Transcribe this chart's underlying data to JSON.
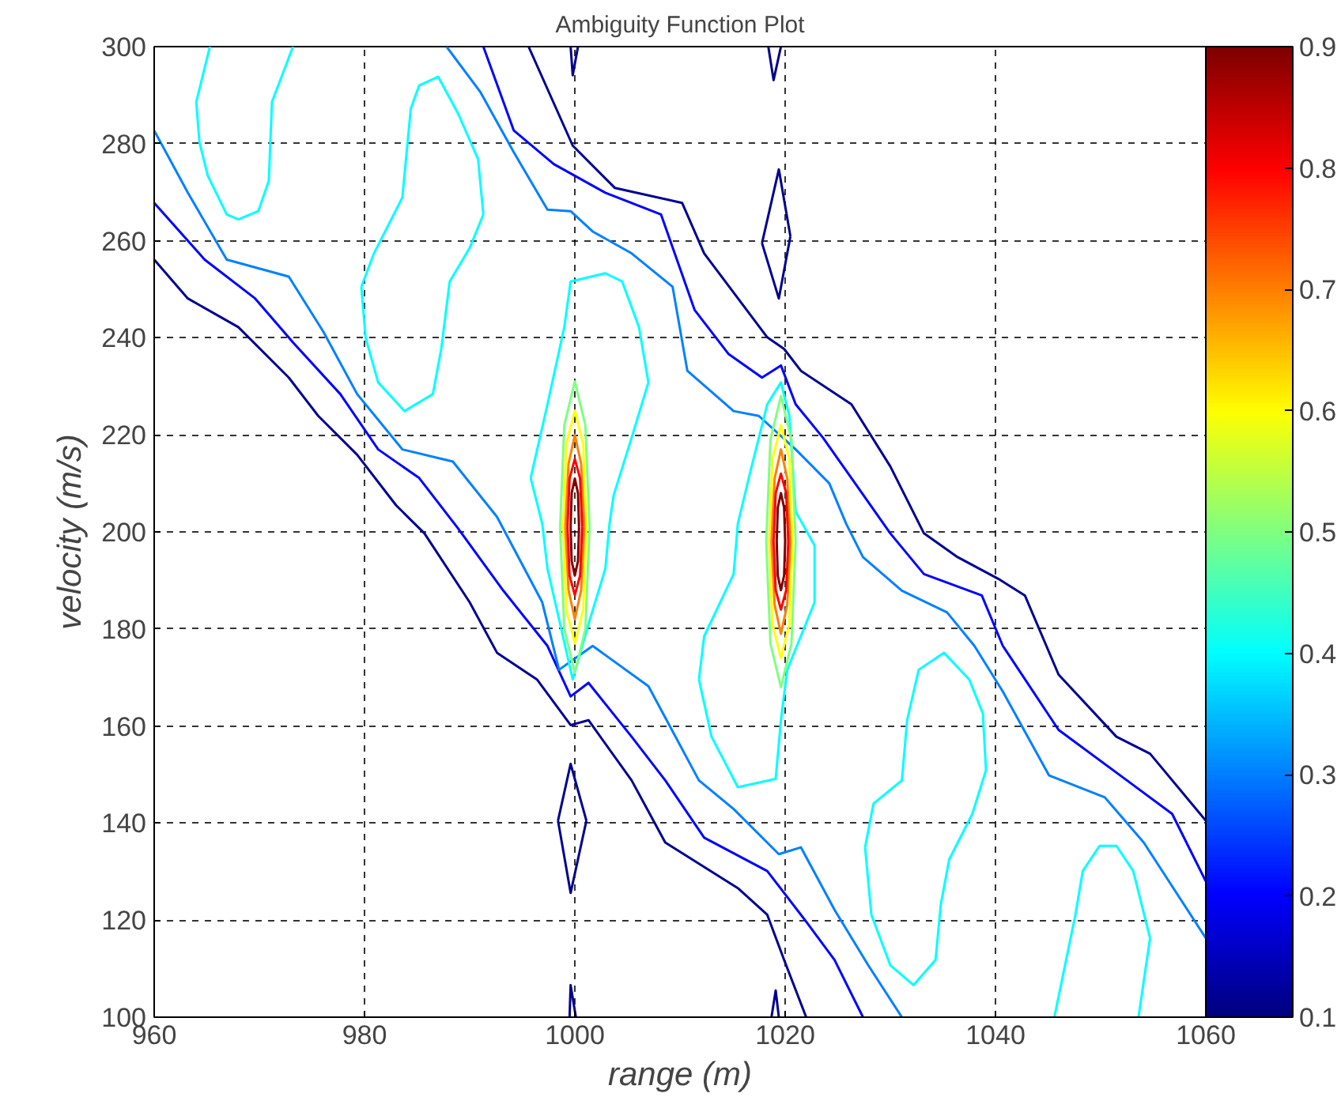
{
  "chart_data": {
    "type": "line",
    "title": "Ambiguity Function Plot",
    "xlabel": "range (m)",
    "ylabel": "velocity (m/s)",
    "xlim": [
      960,
      1060
    ],
    "ylim": [
      100,
      300
    ],
    "xticks": [
      960,
      980,
      1000,
      1020,
      1040,
      1060
    ],
    "yticks": [
      100,
      120,
      140,
      160,
      180,
      200,
      220,
      240,
      260,
      280,
      300
    ],
    "grid": true,
    "line_style": "solid",
    "marker": "none",
    "clim": [
      0.1,
      0.9
    ],
    "cticks": [
      0.1,
      0.2,
      0.3,
      0.4,
      0.5,
      0.6,
      0.7,
      0.8,
      0.9
    ],
    "series": [
      {
        "color": "#00008f",
        "x": [
          995.6,
          999.8,
          1003.8,
          1010.2,
          1012.3,
          1018.3,
          1019.9,
          1021.5,
          1026.3,
          1030.0,
          1033.2,
          1036.4,
          1040.3,
          1042.8,
          1046.0,
          1051.5,
          1054.7,
          1060
        ],
        "values": [
          300,
          279.6,
          270.9,
          267.8,
          257.4,
          240.1,
          237.7,
          233.2,
          226.3,
          213.5,
          199.7,
          194.8,
          190.3,
          186.9,
          170.6,
          157.8,
          154.3,
          140.5
        ]
      },
      {
        "color": "#0000ff",
        "x": [
          991.3,
          994.2,
          998.0,
          1002.9,
          1008.2,
          1011.4,
          1014.6,
          1017.8,
          1019.6,
          1021.0,
          1023.6,
          1026.3,
          1030.0,
          1033.2,
          1038.7,
          1040.7,
          1046.0,
          1052.5,
          1056.8,
          1060
        ],
        "values": [
          300,
          282.7,
          275.8,
          269.9,
          265.4,
          245.7,
          236.7,
          231.8,
          234.3,
          226.3,
          219.4,
          211.1,
          199.7,
          191.3,
          186.9,
          176.5,
          159.2,
          148.8,
          141.9,
          128.0
        ]
      },
      {
        "color": "#0080ff",
        "x": [
          987.8,
          991.0,
          994.2,
          997.4,
          999.6,
          1001.7,
          1005.4,
          1009.3,
          1010.7,
          1015.1,
          1017.5,
          1021.0,
          1024.2,
          1025.8,
          1027.4,
          1031.1,
          1035.4,
          1038.0,
          1040.7,
          1045.1,
          1050.4,
          1054.1,
          1060
        ],
        "values": [
          300,
          290.7,
          278.2,
          266.4,
          266.1,
          261.9,
          257.4,
          250.5,
          233.2,
          224.9,
          223.9,
          217.0,
          210.0,
          201.7,
          194.8,
          187.9,
          183.4,
          176.5,
          167.1,
          149.8,
          145.3,
          136.0,
          116.3
        ]
      },
      {
        "color": "#00008f",
        "x": [
          960,
          963.2,
          968.0,
          972.8,
          975.6,
          979.3,
          983.0,
          985.7,
          990.0,
          992.6,
          996.4,
          999.6,
          1001.3,
          1005.4,
          1008.6,
          1015.5,
          1018.3,
          1019.9,
          1022.0
        ],
        "values": [
          256.1,
          248.1,
          242.2,
          231.8,
          223.9,
          215.9,
          205.5,
          199.7,
          185.5,
          175.1,
          169.6,
          160.2,
          161.2,
          148.8,
          136.0,
          126.6,
          121.1,
          111.8,
          100
        ]
      },
      {
        "color": "#0000ff",
        "x": [
          960,
          964.8,
          969.6,
          973.3,
          977.7,
          981.3,
          985.2,
          988.9,
          993.2,
          997.4,
          999.6,
          1001.3,
          1005.4,
          1008.6,
          1012.3,
          1018.3,
          1022.0,
          1024.7,
          1027.4
        ],
        "values": [
          267.8,
          256.1,
          248.1,
          238.8,
          228.4,
          217.0,
          211.1,
          200.7,
          187.9,
          176.5,
          166.1,
          168.9,
          157.8,
          148.8,
          137.0,
          130.1,
          119.7,
          111.8,
          100
        ]
      },
      {
        "color": "#0080ff",
        "x": [
          960,
          963.2,
          966.9,
          972.8,
          976.1,
          979.3,
          983.6,
          988.4,
          992.6,
          996.9,
          998.5,
          1001.7,
          1007.0,
          1011.8,
          1015.1,
          1019.4,
          1021.5,
          1024.7,
          1027.9,
          1031.1
        ],
        "values": [
          282.7,
          269.9,
          256.1,
          252.6,
          241.2,
          228.4,
          217.0,
          214.5,
          203.1,
          185.5,
          171.6,
          176.5,
          168.2,
          148.8,
          142.9,
          133.6,
          135.0,
          122.1,
          110.7,
          100
        ]
      },
      {
        "color": "#00ffff",
        "x": [
          965.3,
          964.0,
          964.3,
          965.1,
          966.9,
          968.0,
          969.9,
          970.9,
          971.2,
          973.2
        ],
        "values": [
          300,
          288.6,
          280.3,
          273.4,
          265.4,
          264.4,
          266.1,
          272.3,
          288.6,
          300
        ]
      },
      {
        "color": "#00ffff",
        "x": [
          979.7,
          980.9,
          983.6,
          984.4,
          985.2,
          987.0,
          988.9,
          990.8,
          991.3,
          null,
          979.7,
          980.1,
          981.3,
          983.8,
          986.5,
          987.3,
          988.1,
          990.0,
          991.3
        ],
        "values": [
          250.5,
          257.4,
          268.9,
          287.2,
          292.0,
          293.8,
          286.2,
          276.8,
          265.4,
          null,
          250.5,
          240.1,
          230.8,
          224.9,
          228.4,
          237.7,
          251.6,
          258.5,
          265.4
        ]
      },
      {
        "color": "#00ffff",
        "x": [
          995.8,
          997.4,
          999.0,
          999.6,
          1002.9,
          1004.5,
          1006.1,
          1007.0,
          null,
          995.8,
          996.9,
          997.4,
          998.5,
          999.8,
          1001.3,
          1002.9,
          1003.3,
          1003.7,
          1005.4,
          1007.0
        ],
        "values": [
          211.1,
          226.3,
          242.2,
          251.6,
          253.3,
          251.6,
          242.2,
          230.8,
          null,
          211.1,
          201.7,
          192.4,
          182.0,
          169.6,
          181.0,
          192.4,
          201.7,
          207.6,
          219.4,
          230.8
        ]
      },
      {
        "color": "#00ffff",
        "x": [
          1011.8,
          1012.3,
          1015.1,
          1015.5,
          1016.7,
          1018.3,
          1019.6,
          1020.4,
          1021.0,
          1022.8,
          1022.8,
          null,
          1011.8,
          1013.0,
          1015.5,
          1019.1,
          1019.6,
          1020.2,
          1022.8
        ],
        "values": [
          169.6,
          178.5,
          191.3,
          201.7,
          212.5,
          226.3,
          230.8,
          223.9,
          204.2,
          197.2,
          185.5,
          null,
          169.6,
          157.8,
          147.4,
          149.1,
          161.2,
          171.6,
          185.5
        ]
      },
      {
        "color": "#00ffff",
        "x": [
          1027.6,
          1028.4,
          1031.1,
          1031.6,
          1032.7,
          1035.1,
          1037.5,
          1038.8,
          1039.1,
          null,
          1027.6,
          1028.2,
          1030.0,
          1032.2,
          1034.3,
          1034.8,
          1035.6,
          1037.8,
          1039.1
        ],
        "values": [
          135.0,
          144.0,
          148.8,
          161.2,
          171.6,
          175.1,
          169.6,
          162.6,
          150.9,
          null,
          135.0,
          121.1,
          110.7,
          106.6,
          111.8,
          123.2,
          132.5,
          141.9,
          150.9
        ]
      },
      {
        "color": "#00ffff",
        "x": [
          1045.6,
          1047.6,
          1048.3,
          1049.9,
          1051.5,
          1053.1,
          1054.7,
          null,
          1053.6,
          1054.7
        ],
        "values": [
          100,
          121.1,
          130.1,
          135.3,
          135.3,
          130.1,
          116.3,
          null,
          100,
          116.3
        ]
      },
      {
        "color": "#00008f",
        "x": [
          1018.4,
          1018.9,
          1019.6
        ],
        "values": [
          300,
          293.1,
          300
        ]
      },
      {
        "color": "#00008f",
        "x": [
          1017.8,
          1019.4,
          1020.5,
          null,
          1017.8,
          1019.4,
          1020.5
        ],
        "values": [
          259.5,
          274.7,
          260.9,
          null,
          259.5,
          248.1,
          260.9
        ]
      },
      {
        "color": "#00008f",
        "x": [
          998.4,
          999.6,
          1001.1,
          null,
          998.4,
          999.6,
          1001.1
        ],
        "values": [
          140.5,
          152.2,
          140.5,
          null,
          140.5,
          125.6,
          140.5
        ]
      },
      {
        "color": "#00008f",
        "x": [
          999.5,
          999.6,
          1000.1
        ],
        "values": [
          100,
          106.6,
          100
        ]
      },
      {
        "color": "#00008f",
        "x": [
          1018.7,
          1019.1,
          1019.4
        ],
        "values": [
          100,
          105.5,
          100
        ]
      },
      {
        "color": "#00008f",
        "x": [
          999.6,
          999.8,
          1000.3
        ],
        "values": [
          300,
          294.1,
          300
        ]
      },
      {
        "color": "#80ff80",
        "x": [
          998.6,
          999,
          1000,
          1001,
          1001.4,
          null,
          998.6,
          999,
          1000,
          1001,
          1001.4
        ],
        "values": [
          201,
          222,
          231,
          222,
          201,
          null,
          201,
          180,
          171,
          180,
          201
        ]
      },
      {
        "color": "#ffff00",
        "x": [
          998.9,
          999.2,
          1000,
          1000.8,
          1001.1,
          null,
          998.9,
          999.2,
          1000,
          1000.8,
          1001.1
        ],
        "values": [
          201,
          218,
          225,
          218,
          201,
          null,
          201,
          184,
          177,
          184,
          201
        ]
      },
      {
        "color": "#ff8000",
        "x": [
          999.1,
          999.4,
          1000,
          1000.6,
          1000.9,
          null,
          999.1,
          999.4,
          1000,
          1000.6,
          1000.9
        ],
        "values": [
          201,
          214,
          220,
          214,
          201,
          null,
          201,
          188,
          182,
          188,
          201
        ]
      },
      {
        "color": "#ff0000",
        "x": [
          999.3,
          999.5,
          1000,
          1000.5,
          1000.7,
          null,
          999.3,
          999.5,
          1000,
          1000.5,
          1000.7
        ],
        "values": [
          201,
          211,
          215,
          211,
          201,
          null,
          201,
          191,
          187,
          191,
          201
        ]
      },
      {
        "color": "#800000",
        "x": [
          999.6,
          999.7,
          1000,
          1000.3,
          1000.4,
          null,
          999.6,
          999.7,
          1000,
          1000.3,
          1000.4
        ],
        "values": [
          201,
          208,
          211,
          208,
          201,
          null,
          201,
          194,
          191,
          194,
          201
        ]
      },
      {
        "color": "#80ff80",
        "x": [
          1018.2,
          1018.6,
          1019.6,
          1020.6,
          1021.0,
          null,
          1018.2,
          1018.6,
          1019.6,
          1020.6,
          1021.0
        ],
        "values": [
          198,
          219,
          228,
          219,
          198,
          null,
          198,
          177,
          168,
          177,
          198
        ]
      },
      {
        "color": "#ffff00",
        "x": [
          1018.5,
          1018.8,
          1019.6,
          1020.4,
          1020.7,
          null,
          1018.5,
          1018.8,
          1019.6,
          1020.4,
          1020.7
        ],
        "values": [
          198,
          215,
          222,
          215,
          198,
          null,
          198,
          181,
          174,
          181,
          198
        ]
      },
      {
        "color": "#ff8000",
        "x": [
          1018.7,
          1019.0,
          1019.6,
          1020.2,
          1020.5,
          null,
          1018.7,
          1019.0,
          1019.6,
          1020.2,
          1020.5
        ],
        "values": [
          198,
          211,
          217,
          211,
          198,
          null,
          198,
          185,
          179,
          185,
          198
        ]
      },
      {
        "color": "#ff0000",
        "x": [
          1018.9,
          1019.1,
          1019.6,
          1020.1,
          1020.3,
          null,
          1018.9,
          1019.1,
          1019.6,
          1020.1,
          1020.3
        ],
        "values": [
          198,
          208,
          212,
          208,
          198,
          null,
          198,
          188,
          184,
          188,
          198
        ]
      },
      {
        "color": "#800000",
        "x": [
          1019.2,
          1019.3,
          1019.6,
          1019.9,
          1020.0,
          null,
          1019.2,
          1019.3,
          1019.6,
          1019.9,
          1020.0
        ],
        "values": [
          198,
          205,
          208,
          205,
          198,
          null,
          198,
          191,
          188,
          191,
          198
        ]
      }
    ]
  }
}
